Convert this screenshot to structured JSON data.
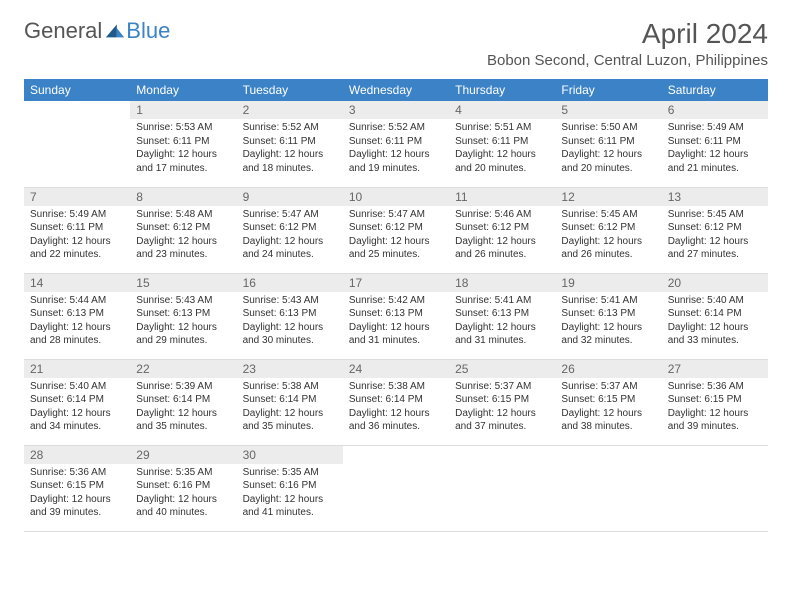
{
  "logo": {
    "part1": "General",
    "part2": "Blue"
  },
  "title": "April 2024",
  "location": "Bobon Second, Central Luzon, Philippines",
  "weekdays": [
    "Sunday",
    "Monday",
    "Tuesday",
    "Wednesday",
    "Thursday",
    "Friday",
    "Saturday"
  ],
  "colors": {
    "header_bg": "#3b82c7",
    "header_text": "#ffffff",
    "daynum_bg": "#ececec",
    "daynum_text": "#666666",
    "body_text": "#333333",
    "title_text": "#555555"
  },
  "rows": [
    [
      {
        "n": "",
        "sr": "",
        "ss": "",
        "dl1": "",
        "dl2": ""
      },
      {
        "n": "1",
        "sr": "Sunrise: 5:53 AM",
        "ss": "Sunset: 6:11 PM",
        "dl1": "Daylight: 12 hours",
        "dl2": "and 17 minutes."
      },
      {
        "n": "2",
        "sr": "Sunrise: 5:52 AM",
        "ss": "Sunset: 6:11 PM",
        "dl1": "Daylight: 12 hours",
        "dl2": "and 18 minutes."
      },
      {
        "n": "3",
        "sr": "Sunrise: 5:52 AM",
        "ss": "Sunset: 6:11 PM",
        "dl1": "Daylight: 12 hours",
        "dl2": "and 19 minutes."
      },
      {
        "n": "4",
        "sr": "Sunrise: 5:51 AM",
        "ss": "Sunset: 6:11 PM",
        "dl1": "Daylight: 12 hours",
        "dl2": "and 20 minutes."
      },
      {
        "n": "5",
        "sr": "Sunrise: 5:50 AM",
        "ss": "Sunset: 6:11 PM",
        "dl1": "Daylight: 12 hours",
        "dl2": "and 20 minutes."
      },
      {
        "n": "6",
        "sr": "Sunrise: 5:49 AM",
        "ss": "Sunset: 6:11 PM",
        "dl1": "Daylight: 12 hours",
        "dl2": "and 21 minutes."
      }
    ],
    [
      {
        "n": "7",
        "sr": "Sunrise: 5:49 AM",
        "ss": "Sunset: 6:11 PM",
        "dl1": "Daylight: 12 hours",
        "dl2": "and 22 minutes."
      },
      {
        "n": "8",
        "sr": "Sunrise: 5:48 AM",
        "ss": "Sunset: 6:12 PM",
        "dl1": "Daylight: 12 hours",
        "dl2": "and 23 minutes."
      },
      {
        "n": "9",
        "sr": "Sunrise: 5:47 AM",
        "ss": "Sunset: 6:12 PM",
        "dl1": "Daylight: 12 hours",
        "dl2": "and 24 minutes."
      },
      {
        "n": "10",
        "sr": "Sunrise: 5:47 AM",
        "ss": "Sunset: 6:12 PM",
        "dl1": "Daylight: 12 hours",
        "dl2": "and 25 minutes."
      },
      {
        "n": "11",
        "sr": "Sunrise: 5:46 AM",
        "ss": "Sunset: 6:12 PM",
        "dl1": "Daylight: 12 hours",
        "dl2": "and 26 minutes."
      },
      {
        "n": "12",
        "sr": "Sunrise: 5:45 AM",
        "ss": "Sunset: 6:12 PM",
        "dl1": "Daylight: 12 hours",
        "dl2": "and 26 minutes."
      },
      {
        "n": "13",
        "sr": "Sunrise: 5:45 AM",
        "ss": "Sunset: 6:12 PM",
        "dl1": "Daylight: 12 hours",
        "dl2": "and 27 minutes."
      }
    ],
    [
      {
        "n": "14",
        "sr": "Sunrise: 5:44 AM",
        "ss": "Sunset: 6:13 PM",
        "dl1": "Daylight: 12 hours",
        "dl2": "and 28 minutes."
      },
      {
        "n": "15",
        "sr": "Sunrise: 5:43 AM",
        "ss": "Sunset: 6:13 PM",
        "dl1": "Daylight: 12 hours",
        "dl2": "and 29 minutes."
      },
      {
        "n": "16",
        "sr": "Sunrise: 5:43 AM",
        "ss": "Sunset: 6:13 PM",
        "dl1": "Daylight: 12 hours",
        "dl2": "and 30 minutes."
      },
      {
        "n": "17",
        "sr": "Sunrise: 5:42 AM",
        "ss": "Sunset: 6:13 PM",
        "dl1": "Daylight: 12 hours",
        "dl2": "and 31 minutes."
      },
      {
        "n": "18",
        "sr": "Sunrise: 5:41 AM",
        "ss": "Sunset: 6:13 PM",
        "dl1": "Daylight: 12 hours",
        "dl2": "and 31 minutes."
      },
      {
        "n": "19",
        "sr": "Sunrise: 5:41 AM",
        "ss": "Sunset: 6:13 PM",
        "dl1": "Daylight: 12 hours",
        "dl2": "and 32 minutes."
      },
      {
        "n": "20",
        "sr": "Sunrise: 5:40 AM",
        "ss": "Sunset: 6:14 PM",
        "dl1": "Daylight: 12 hours",
        "dl2": "and 33 minutes."
      }
    ],
    [
      {
        "n": "21",
        "sr": "Sunrise: 5:40 AM",
        "ss": "Sunset: 6:14 PM",
        "dl1": "Daylight: 12 hours",
        "dl2": "and 34 minutes."
      },
      {
        "n": "22",
        "sr": "Sunrise: 5:39 AM",
        "ss": "Sunset: 6:14 PM",
        "dl1": "Daylight: 12 hours",
        "dl2": "and 35 minutes."
      },
      {
        "n": "23",
        "sr": "Sunrise: 5:38 AM",
        "ss": "Sunset: 6:14 PM",
        "dl1": "Daylight: 12 hours",
        "dl2": "and 35 minutes."
      },
      {
        "n": "24",
        "sr": "Sunrise: 5:38 AM",
        "ss": "Sunset: 6:14 PM",
        "dl1": "Daylight: 12 hours",
        "dl2": "and 36 minutes."
      },
      {
        "n": "25",
        "sr": "Sunrise: 5:37 AM",
        "ss": "Sunset: 6:15 PM",
        "dl1": "Daylight: 12 hours",
        "dl2": "and 37 minutes."
      },
      {
        "n": "26",
        "sr": "Sunrise: 5:37 AM",
        "ss": "Sunset: 6:15 PM",
        "dl1": "Daylight: 12 hours",
        "dl2": "and 38 minutes."
      },
      {
        "n": "27",
        "sr": "Sunrise: 5:36 AM",
        "ss": "Sunset: 6:15 PM",
        "dl1": "Daylight: 12 hours",
        "dl2": "and 39 minutes."
      }
    ],
    [
      {
        "n": "28",
        "sr": "Sunrise: 5:36 AM",
        "ss": "Sunset: 6:15 PM",
        "dl1": "Daylight: 12 hours",
        "dl2": "and 39 minutes."
      },
      {
        "n": "29",
        "sr": "Sunrise: 5:35 AM",
        "ss": "Sunset: 6:16 PM",
        "dl1": "Daylight: 12 hours",
        "dl2": "and 40 minutes."
      },
      {
        "n": "30",
        "sr": "Sunrise: 5:35 AM",
        "ss": "Sunset: 6:16 PM",
        "dl1": "Daylight: 12 hours",
        "dl2": "and 41 minutes."
      },
      {
        "n": "",
        "sr": "",
        "ss": "",
        "dl1": "",
        "dl2": ""
      },
      {
        "n": "",
        "sr": "",
        "ss": "",
        "dl1": "",
        "dl2": ""
      },
      {
        "n": "",
        "sr": "",
        "ss": "",
        "dl1": "",
        "dl2": ""
      },
      {
        "n": "",
        "sr": "",
        "ss": "",
        "dl1": "",
        "dl2": ""
      }
    ]
  ]
}
